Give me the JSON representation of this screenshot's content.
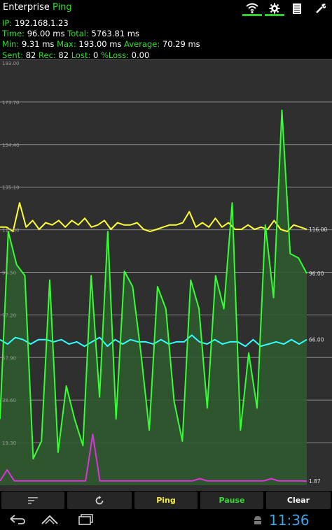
{
  "app": {
    "title_part1": "Enterprise",
    "title_part2": "Ping",
    "accent_color": "#33dd33"
  },
  "tabs": [
    {
      "name": "wifi-icon",
      "active": true
    },
    {
      "name": "settings-icon",
      "active": true
    },
    {
      "name": "list-icon",
      "active": false
    },
    {
      "name": "tools-icon",
      "active": false
    }
  ],
  "stats": {
    "ip_label": "IP:",
    "ip": "192.168.1.23",
    "time_label": "Time:",
    "time": "96.00 ms",
    "total_label": "Total:",
    "total": "5763.81 ms",
    "min_label": "Min:",
    "min": "9.31 ms",
    "max_label": "Max:",
    "max": "193.00 ms",
    "avg_label": "Average:",
    "avg": "70.29 ms",
    "sent_label": "Sent:",
    "sent": "82",
    "rec_label": "Rec:",
    "rec": "82",
    "lost_label": "Lost:",
    "lost": "0",
    "loss_label": "%Loss:",
    "loss": "0.00"
  },
  "chart_data": {
    "type": "line",
    "title": "",
    "xlabel": "",
    "ylabel": "",
    "ylim": [
      0,
      193
    ],
    "y_ticks": [
      "193.00",
      "173.70",
      "154.40",
      "135.10",
      "115.80",
      "96.50",
      "77.20",
      "57.90",
      "38.60",
      "19.30"
    ],
    "grid": true,
    "series": [
      {
        "color": "#ffff33",
        "end_label": "116.00",
        "values": [
          117,
          117,
          115,
          128,
          117,
          120,
          116,
          119,
          118,
          120,
          117,
          120,
          118,
          121,
          117,
          118,
          120,
          116,
          119,
          118,
          118,
          119,
          116,
          115,
          116,
          117,
          118,
          118,
          119,
          124,
          117,
          119,
          117,
          121,
          117,
          119,
          116,
          116,
          118,
          116,
          117,
          116,
          120,
          116,
          115,
          118,
          117,
          116
        ]
      },
      {
        "color": "#33ffff",
        "end_label": "66.00",
        "values": [
          66,
          64,
          67,
          66,
          64,
          66,
          66,
          65,
          66,
          64,
          65,
          63,
          65,
          67,
          63,
          66,
          64,
          66,
          65,
          65,
          64,
          66,
          64,
          65,
          65,
          68,
          65,
          64,
          66,
          64,
          65,
          65,
          63,
          66,
          63,
          64,
          65,
          64,
          66,
          64,
          66
        ]
      },
      {
        "color": "#33ff33",
        "end_label": "96.00",
        "values": [
          30,
          115,
          100,
          95,
          12,
          20,
          93,
          15,
          45,
          30,
          18,
          95,
          40,
          115,
          30,
          97,
          90,
          60,
          25,
          90,
          80,
          38,
          20,
          93,
          80,
          35,
          95,
          80,
          128,
          25,
          60,
          35,
          118,
          85,
          170,
          105,
          103,
          96
        ]
      },
      {
        "color": "#dd33dd",
        "end_label": "1.87",
        "values": [
          1.9,
          7,
          2,
          2,
          2,
          2,
          2,
          2,
          2,
          2,
          2,
          2,
          2,
          23,
          2,
          2,
          2,
          2,
          2,
          2,
          2,
          2,
          2,
          2,
          2,
          2,
          2,
          2,
          3,
          2,
          2,
          2,
          2,
          2,
          2,
          2,
          2,
          2,
          3,
          2,
          2,
          2,
          2,
          1.87
        ]
      }
    ]
  },
  "buttons": {
    "sort_icon": "sort-icon",
    "refresh_icon": "refresh-icon",
    "ping": "Ping",
    "pause": "Pause",
    "clear": "Clear"
  },
  "status_bar": {
    "time": "11:36"
  }
}
